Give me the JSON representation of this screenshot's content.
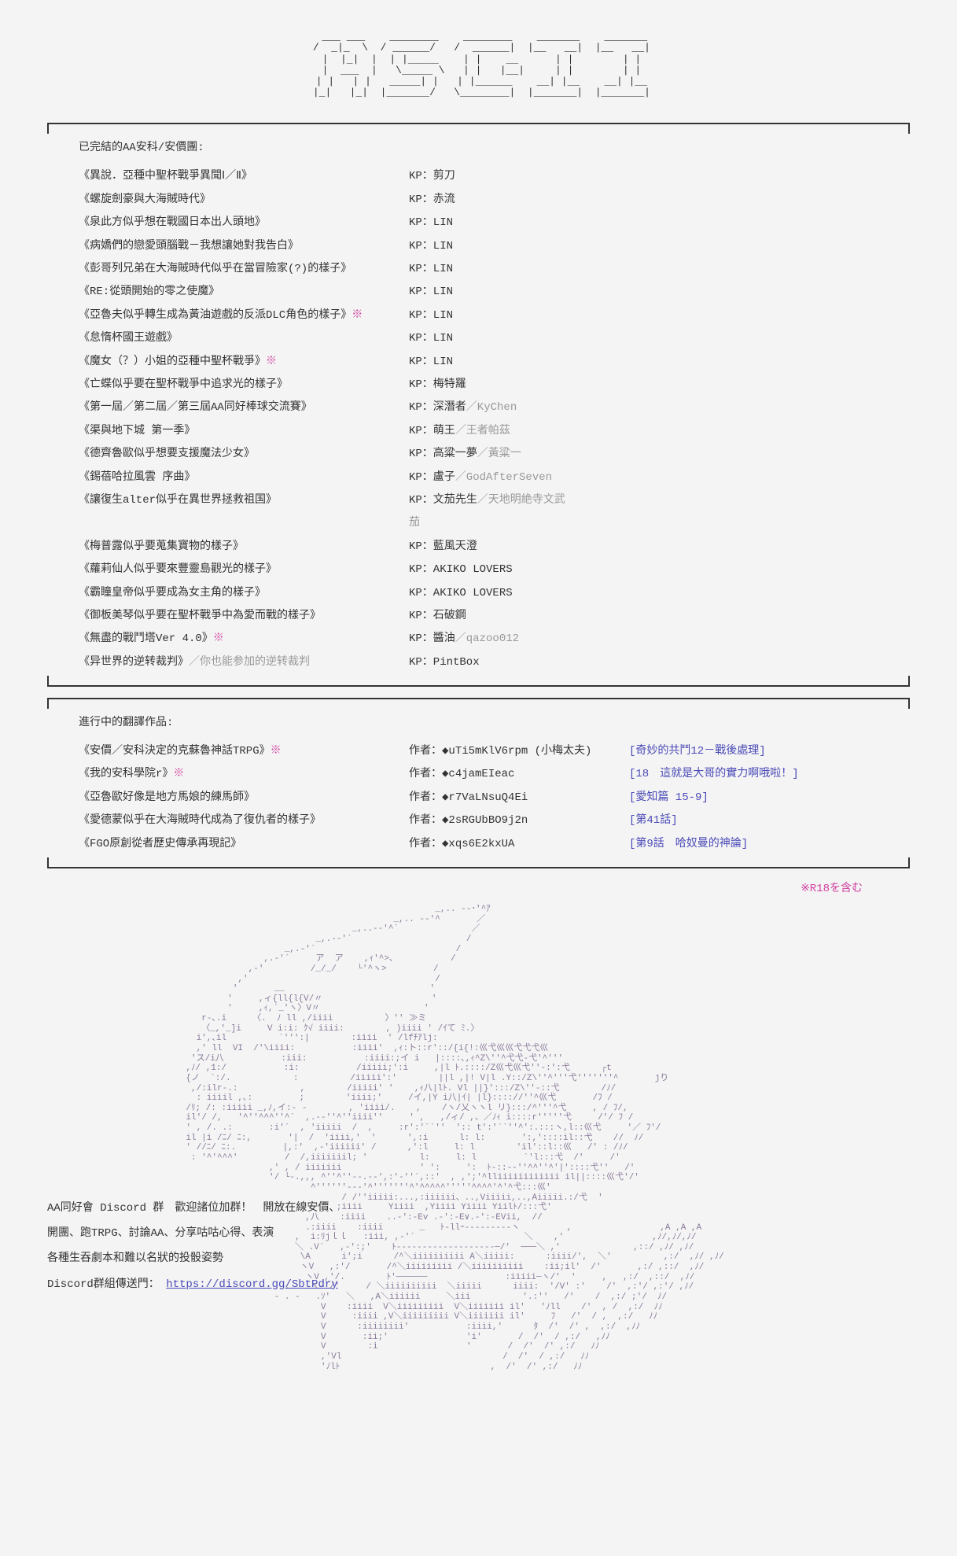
{
  "logo_ascii": "  _______    _______    _______    _______    _______\n /  ___  \\\\  / _____ \\\\  /  ___  \\\\  |__   __|  |__   __|\n |  |_|  |  | |___    | |   |_|     | |        | |\n |  ___  |   \\\\___ \\\\   | |    _     | |        | |\n | |   | |   ____| |  | |___| |   __| |__    __| |__\n |_|   |_|  |______/   \\\\_____/   |_______|  |_______|",
  "completed_header": "已完結的AA安科/安價團:",
  "completed": [
    {
      "title": "《異說．亞種中聖杯戰爭異聞Ⅰ／Ⅱ》",
      "kp": "KP：剪刀"
    },
    {
      "title": "《螺旋劍豪與大海賊時代》",
      "kp": "KP：赤流"
    },
    {
      "title": "《泉此方似乎想在戰國日本出人頭地》",
      "kp": "KP：LIN"
    },
    {
      "title": "《病嬌們的戀愛頭腦戰－我想讓她對我告白》",
      "kp": "KP：LIN"
    },
    {
      "title": "《彭哥列兄弟在大海賊時代似乎在當冒險家(?)的樣子》",
      "kp": "KP：LIN"
    },
    {
      "title": "《RE:從頭開始的零之使魔》",
      "kp": "KP：LIN"
    },
    {
      "title": "《亞魯夫似乎轉生成為黃油遊戲的反派DLC角色的樣子》",
      "mark": "※",
      "kp": "KP：LIN"
    },
    {
      "title": "《怠惰杯國王遊戲》",
      "kp": "KP：LIN"
    },
    {
      "title": "《魔女（？）小姐的亞種中聖杯戰爭》",
      "mark": "※",
      "kp": "KP：LIN"
    },
    {
      "title": "《亡蝶似乎要在聖杯戰爭中追求光的樣子》",
      "kp": "KP：梅特羅"
    },
    {
      "title": "《第一屆／第二屆／第三屆AA同好棒球交流賽》",
      "kp": "KP：深潛者",
      "kp_gray": "／KyChen"
    },
    {
      "title": "《渠與地下城 第一季》",
      "kp": "KP：萌王",
      "kp_gray": "／王者帕茲"
    },
    {
      "title": "《德齊魯歐似乎想要支援魔法少女》",
      "kp": "KP：高粱一夢",
      "kp_gray": "／黃粱一"
    },
    {
      "title": "《錫蓓哈拉風雲 序曲》",
      "kp": "KP：盧子",
      "kp_gray": "／GodAfterSeven"
    },
    {
      "title": "《讓復生alter似乎在異世界拯救祖国》",
      "kp": "KP：文茄先生",
      "kp_gray": "／天地明絶寺文武茄"
    },
    {
      "title": "《梅普露似乎要蒐集寶物的樣子》",
      "kp": "KP：藍風天澄"
    },
    {
      "title": "《蘿莉仙人似乎要來豐靈島觀光的樣子》",
      "kp": "KP：AKIKO LOVERS"
    },
    {
      "title": "《霸瞳皇帝似乎要成為女主角的樣子》",
      "kp": "KP：AKIKO LOVERS"
    },
    {
      "title": "《御板美琴似乎要在聖杯戰爭中為愛而戰的樣子》",
      "kp": "KP：石破鋼"
    },
    {
      "title": "《無盡的戰鬥塔Ver 4.0》",
      "mark": "※",
      "kp": "KP：醬油",
      "kp_gray": "／qazoo012"
    },
    {
      "title": "《异世界的逆转裁判》",
      "title_gray": "／你也能参加的逆转裁判",
      "kp": "KP：PintBox"
    }
  ],
  "ongoing_header": "進行中的翻譯作品:",
  "ongoing": [
    {
      "title": "《安價／安科決定的克蘇魯神話TRPG》",
      "mark": "※",
      "author": "作者：◆uTi5mKlV6rpm (小梅太夫)",
      "link": "[奇妙的共鬥12－戰後處理]"
    },
    {
      "title": "《我的安科學院r》",
      "mark": "※",
      "author": "作者：◆c4jamEIeac",
      "link": "[18　這就是大哥的實力啊哦啦！]"
    },
    {
      "title": "《亞魯歐好像是地方馬娘的練馬師》",
      "author": "作者：◆r7VaLNsuQ4Ei",
      "link": "[愛知篇 15-9]"
    },
    {
      "title": "《愛德蒙似乎在大海賊時代成為了復仇者的樣子》",
      "author": "作者：◆2sRGUbBO9j2n",
      "link": "[第41話]"
    },
    {
      "title": "《FGO原創從者歷史傳承再現記》",
      "author": "作者：◆xqs6E2kxUA",
      "link": "[第9話　哈奴曼的神論]"
    }
  ],
  "r18_note": "※R18を含む",
  "footer_lines": [
    "AA同好會 Discord 群　歡迎諸位加群！　開放在線安價、",
    "開團、跑TRPG、討論AA、分享咕咕心得、表演",
    "各種生吞劇本和難以名狀的投骰姿勢"
  ],
  "footer_link_label": "Discord群組傳送門：",
  "footer_link": "https://discord.gg/SbtPdry"
}
